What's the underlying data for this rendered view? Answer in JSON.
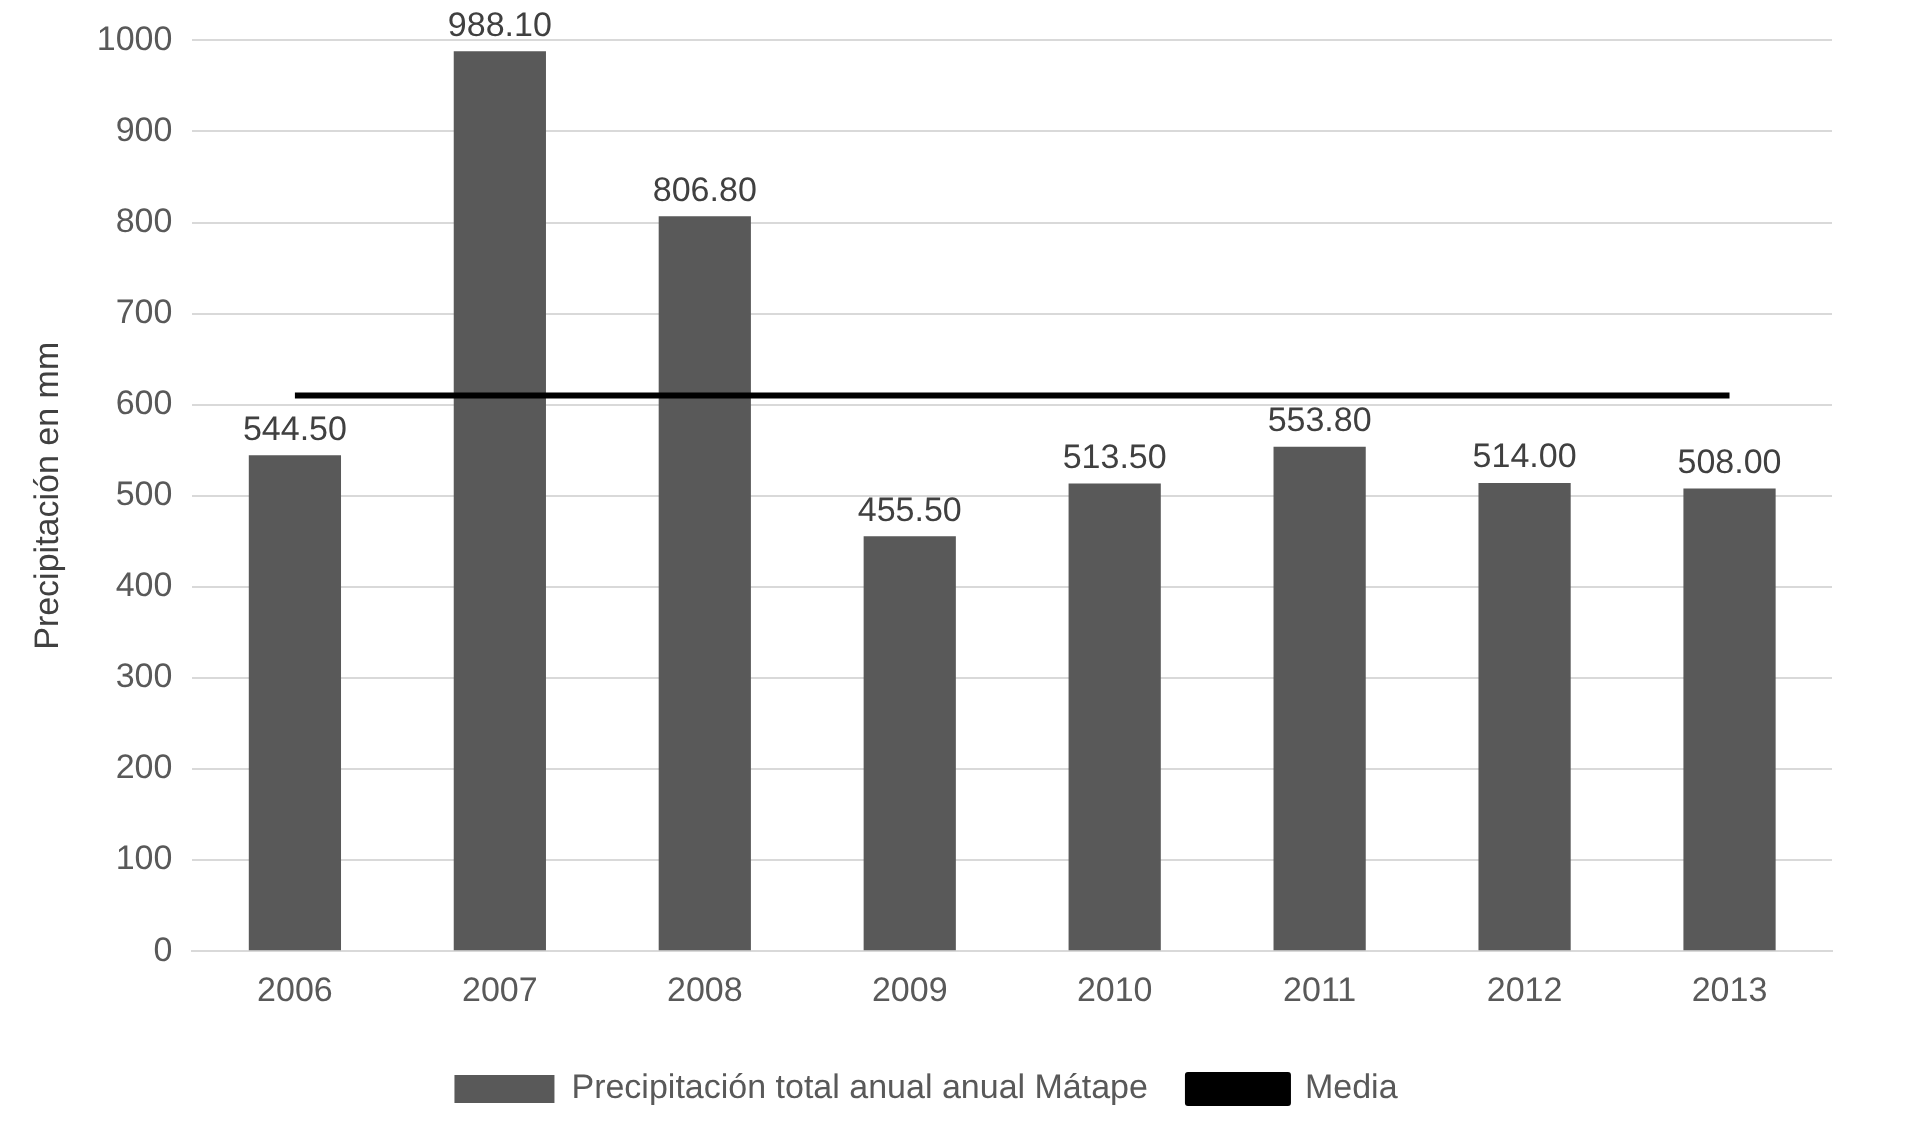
{
  "chart_data": {
    "type": "bar",
    "ylabel": "Precipitación en mm",
    "categories": [
      "2006",
      "2007",
      "2008",
      "2009",
      "2010",
      "2011",
      "2012",
      "2013"
    ],
    "series": [
      {
        "name": "Precipitación total anual anual Mátape",
        "color": "#595959",
        "values": [
          544.5,
          988.1,
          806.8,
          455.5,
          513.5,
          553.8,
          514.0,
          508.0
        ],
        "value_labels": [
          "544.50",
          "988.10",
          "806.80",
          "455.50",
          "513.50",
          "553.80",
          "514.00",
          "508.00"
        ]
      },
      {
        "name": "Media",
        "type": "line",
        "color": "#000000",
        "values": [
          610,
          610,
          610,
          610,
          610,
          610,
          610,
          610
        ]
      }
    ],
    "ylim": [
      0,
      1000
    ],
    "yticks": [
      0,
      100,
      200,
      300,
      400,
      500,
      600,
      700,
      800,
      900,
      1000
    ],
    "grid": "y",
    "legend": "bottom",
    "marker": "none",
    "line_style": "solid"
  }
}
